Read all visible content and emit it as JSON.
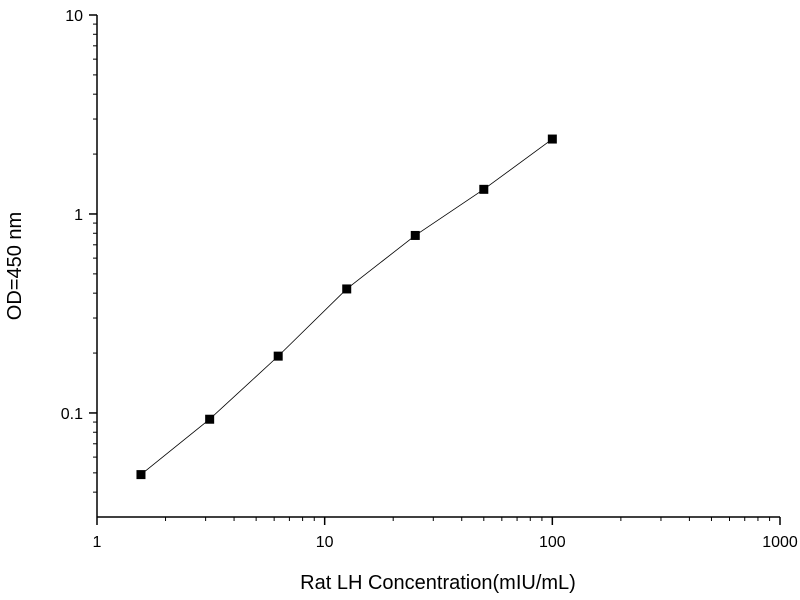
{
  "chart_data": {
    "type": "line",
    "title": "",
    "xlabel": "Rat LH  Concentration(mIU/mL)",
    "ylabel": "OD=450 nm",
    "x_scale": "log",
    "y_scale": "log",
    "xlim": [
      1,
      1000
    ],
    "ylim": [
      0.03,
      10
    ],
    "x_ticks": [
      1,
      10,
      100,
      1000
    ],
    "x_tick_labels": [
      "1",
      "10",
      "100",
      "1000"
    ],
    "y_ticks": [
      0.1,
      1,
      10
    ],
    "y_tick_labels": [
      "0.1",
      "1",
      "10"
    ],
    "grid": false,
    "legend": "none",
    "marker": "square",
    "color": "#000000",
    "series": [
      {
        "x": [
          1.56,
          3.125,
          6.25,
          12.5,
          25,
          50,
          100
        ],
        "y": [
          0.049,
          0.093,
          0.193,
          0.42,
          0.78,
          1.33,
          2.38
        ]
      }
    ]
  }
}
